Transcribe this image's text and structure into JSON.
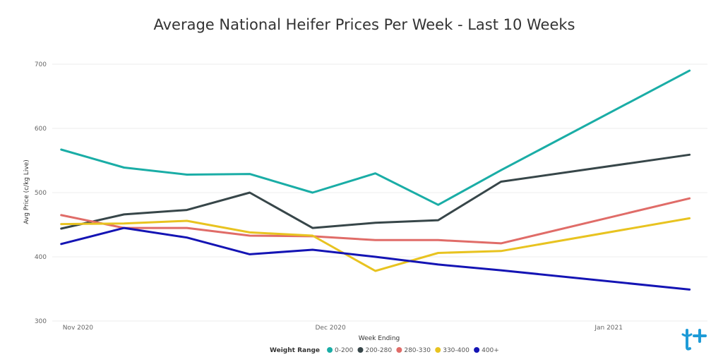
{
  "chart_data": {
    "type": "line",
    "title": "Average National Heifer Prices Per Week - Last 10 Weeks",
    "xlabel": "Week Ending",
    "ylabel": "Avg Price (c/kg Live)",
    "ylim": [
      300,
      700
    ],
    "yticks": [
      300,
      400,
      500,
      600,
      700
    ],
    "xlim": [
      "2020-10-31",
      "2021-01-12"
    ],
    "xticks": [
      {
        "date": "2020-11-01",
        "label": "Nov 2020"
      },
      {
        "date": "2020-12-01",
        "label": "Dec 2020"
      },
      {
        "date": "2021-01-01",
        "label": "Jan 2021"
      }
    ],
    "x": [
      "2020-11-01",
      "2020-11-08",
      "2020-11-15",
      "2020-11-22",
      "2020-11-29",
      "2020-12-06",
      "2020-12-13",
      "2020-12-20",
      "2021-01-10"
    ],
    "series": [
      {
        "name": "0-200",
        "color": "#1AADA6",
        "values": [
          567,
          539,
          528,
          529,
          500,
          530,
          481,
          535,
          690
        ]
      },
      {
        "name": "200-280",
        "color": "#374649",
        "values": [
          444,
          466,
          473,
          500,
          445,
          453,
          457,
          517,
          559
        ]
      },
      {
        "name": "280-330",
        "color": "#E06C68",
        "values": [
          465,
          445,
          445,
          433,
          432,
          426,
          426,
          421,
          491
        ]
      },
      {
        "name": "330-400",
        "color": "#E8C320",
        "values": [
          451,
          452,
          456,
          438,
          433,
          378,
          406,
          409,
          460
        ]
      },
      {
        "name": "400+",
        "color": "#1414B4",
        "values": [
          420,
          445,
          430,
          404,
          411,
          400,
          388,
          379,
          349
        ]
      }
    ],
    "grid": true,
    "legend": {
      "title": "Weight Range",
      "placement": "bottom"
    }
  },
  "logo": {
    "icon": "t-plus-logo-icon",
    "color": "#1E9BD7"
  }
}
